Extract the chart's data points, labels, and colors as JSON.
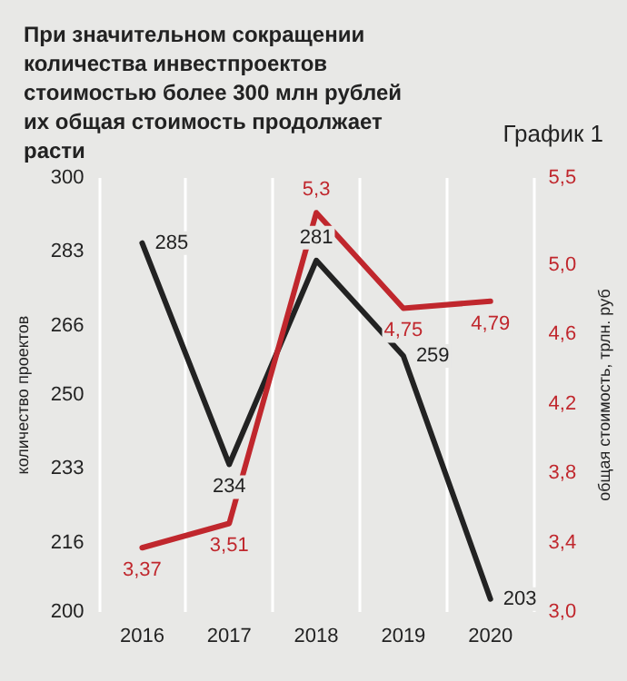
{
  "chart_data": {
    "type": "line",
    "title": "При значительном сокращении количества инвестпроектов стоимостью более 300 млн рублей их общая стоимость продолжает расти",
    "subtitle": "График 1",
    "ylabel": "количество проектов",
    "y2label": "общая стоимость, трлн. руб",
    "categories": [
      "2016",
      "2017",
      "2018",
      "2019",
      "2020"
    ],
    "series": [
      {
        "color": "#222222",
        "values": [
          285,
          234,
          281,
          259,
          203
        ],
        "value_labels": [
          "285",
          "234",
          "281",
          "259",
          "203"
        ]
      },
      {
        "color": "#c0272d",
        "axis": "y2",
        "values": [
          3.37,
          3.51,
          5.3,
          4.75,
          4.79
        ],
        "value_labels": [
          "3,37",
          "3,51",
          "5,3",
          "4,75",
          "4,79"
        ]
      }
    ],
    "ylim": [
      200,
      300
    ],
    "yticks": [
      200,
      216,
      233,
      250,
      266,
      283,
      300
    ],
    "y2lim": [
      3.0,
      5.5
    ],
    "y2ticks": [
      {
        "value": 3.0,
        "label": "3,0"
      },
      {
        "value": 3.4,
        "label": "3,4"
      },
      {
        "value": 3.8,
        "label": "3,8"
      },
      {
        "value": 4.2,
        "label": "4,2"
      },
      {
        "value": 4.6,
        "label": "4,6"
      },
      {
        "value": 5.0,
        "label": "5,0"
      },
      {
        "value": 5.5,
        "label": "5,5"
      }
    ],
    "grid": "x",
    "marker": "none",
    "line_style": "solid"
  }
}
